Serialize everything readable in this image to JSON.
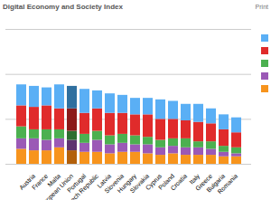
{
  "chart_data": {
    "type": "bar",
    "stacked": true,
    "title": "Digital Economy and Society Index",
    "annotations": [
      {
        "text": "Print"
      }
    ],
    "categories": [
      null,
      "Austria",
      "France",
      "Malta",
      "European Union",
      "Portugal",
      "Czech Republic",
      "Latvia",
      "Slovenia",
      "Hungary",
      "Slovakia",
      "Cyprus",
      "Poland",
      "Croatia",
      "Italy",
      "Greece",
      "Bulgaria",
      "Romania"
    ],
    "series": [
      {
        "color": "#f7941d",
        "colors": [
          "#f7941d",
          "#f7941d",
          "#f7941d",
          "#f7941d",
          "#b3600b",
          "#f7941d",
          "#f7941d",
          "#f7941d",
          "#f7941d",
          "#f7941d",
          "#f7941d",
          "#f7941d",
          "#f7941d",
          "#f7941d",
          "#f7941d",
          "#f7941d",
          "#f7941d",
          "#f7941d"
        ],
        "values": [
          0.1,
          0.09,
          0.09,
          0.11,
          0.09,
          0.08,
          0.08,
          0.07,
          0.08,
          0.08,
          0.07,
          0.06,
          0.07,
          0.06,
          0.06,
          0.06,
          0.05,
          0.05
        ]
      },
      {
        "color": "#9b59b6",
        "colors": [
          "#9b59b6",
          "#9b59b6",
          "#9b59b6",
          "#9b59b6",
          "#5e3370",
          "#9b59b6",
          "#9b59b6",
          "#9b59b6",
          "#9b59b6",
          "#9b59b6",
          "#9b59b6",
          "#9b59b6",
          "#9b59b6",
          "#9b59b6",
          "#9b59b6",
          "#9b59b6",
          "#9b59b6",
          "#9b59b6"
        ],
        "values": [
          0.07,
          0.08,
          0.07,
          0.06,
          0.07,
          0.06,
          0.08,
          0.06,
          0.06,
          0.05,
          0.06,
          0.05,
          0.05,
          0.05,
          0.05,
          0.04,
          0.03,
          0.02
        ]
      },
      {
        "color": "#4cb050",
        "colors": [
          "#4cb050",
          "#4cb050",
          "#4cb050",
          "#4cb050",
          "#2e6e30",
          "#4cb050",
          "#4cb050",
          "#4cb050",
          "#4cb050",
          "#4cb050",
          "#4cb050",
          "#4cb050",
          "#4cb050",
          "#4cb050",
          "#4cb050",
          "#4cb050",
          "#4cb050",
          "#4cb050"
        ],
        "values": [
          0.08,
          0.06,
          0.07,
          0.06,
          0.06,
          0.06,
          0.06,
          0.06,
          0.06,
          0.06,
          0.05,
          0.05,
          0.05,
          0.06,
          0.04,
          0.05,
          0.04,
          0.04
        ]
      },
      {
        "color": "#e02b2b",
        "colors": [
          "#e02b2b",
          "#e02b2b",
          "#e02b2b",
          "#e02b2b",
          "#8b1a1a",
          "#e02b2b",
          "#e02b2b",
          "#e02b2b",
          "#e02b2b",
          "#e02b2b",
          "#e02b2b",
          "#e02b2b",
          "#e02b2b",
          "#e02b2b",
          "#e02b2b",
          "#e02b2b",
          "#e02b2b",
          "#e02b2b"
        ],
        "values": [
          0.14,
          0.15,
          0.16,
          0.14,
          0.15,
          0.14,
          0.15,
          0.15,
          0.14,
          0.14,
          0.15,
          0.14,
          0.13,
          0.12,
          0.13,
          0.12,
          0.11,
          0.1
        ]
      },
      {
        "color": "#5aaff5",
        "colors": [
          "#5aaff5",
          "#5aaff5",
          "#5aaff5",
          "#5aaff5",
          "#2f6f9f",
          "#5aaff5",
          "#5aaff5",
          "#5aaff5",
          "#5aaff5",
          "#5aaff5",
          "#5aaff5",
          "#5aaff5",
          "#5aaff5",
          "#5aaff5",
          "#5aaff5",
          "#5aaff5",
          "#5aaff5",
          "#5aaff5"
        ],
        "values": [
          0.14,
          0.14,
          0.12,
          0.16,
          0.15,
          0.16,
          0.12,
          0.13,
          0.12,
          0.11,
          0.11,
          0.13,
          0.12,
          0.11,
          0.12,
          0.1,
          0.1,
          0.1
        ]
      }
    ],
    "ylim": [
      0,
      0.9
    ],
    "yticks": [
      0,
      0.3,
      0.6,
      0.9
    ],
    "grid": true,
    "tick_labels": "x"
  }
}
